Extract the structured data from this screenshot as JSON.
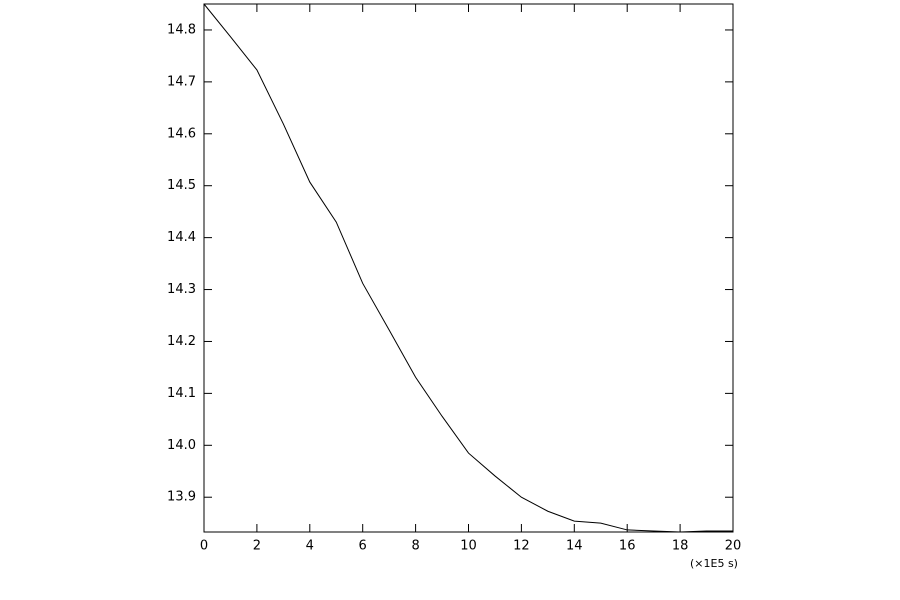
{
  "chart_data": {
    "type": "line",
    "x_label": "(×1E5 s)",
    "x": [
      0,
      1,
      2,
      3,
      4,
      5,
      6,
      7,
      8,
      9,
      10,
      11,
      12,
      13,
      14,
      15,
      16,
      17,
      18,
      19,
      20
    ],
    "series": [
      {
        "color": "#000000",
        "values": [
          14.85,
          14.787,
          14.723,
          14.619,
          14.507,
          14.43,
          14.312,
          14.222,
          14.131,
          14.056,
          13.985,
          13.941,
          13.9,
          13.873,
          13.854,
          13.85,
          13.837,
          13.835,
          13.833,
          13.835,
          13.835
        ]
      }
    ],
    "xlim": [
      0,
      20
    ],
    "xticks": [
      0,
      2,
      4,
      6,
      8,
      10,
      12,
      14,
      16,
      18,
      20
    ],
    "ylim": [
      13.833,
      14.85
    ],
    "yticks": [
      13.9,
      {
        "value": 14,
        "label": "14.0"
      },
      14.1,
      14.2,
      14.3,
      14.4,
      14.5,
      14.6,
      14.7,
      14.8
    ],
    "grid": false
  }
}
